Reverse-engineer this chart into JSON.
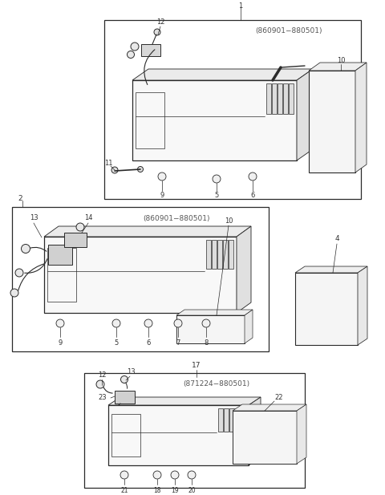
{
  "bg_color": "#ffffff",
  "lc": "#2a2a2a",
  "lc_light": "#888888",
  "fig_width": 4.8,
  "fig_height": 6.17,
  "dpi": 100
}
